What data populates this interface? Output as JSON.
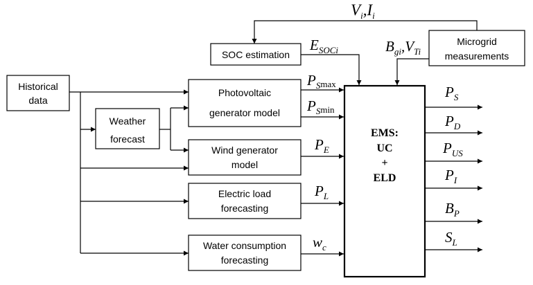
{
  "blocks": {
    "historical": [
      "Historical",
      "data"
    ],
    "weather": [
      "Weather",
      "forecast"
    ],
    "pv": [
      "Photovoltaic",
      "generator model"
    ],
    "wind": [
      "Wind generator",
      "model"
    ],
    "load": [
      "Electric load",
      "forecasting"
    ],
    "water": [
      "Water consumption",
      "forecasting"
    ],
    "soc": [
      "SOC estimation"
    ],
    "micro": [
      "Microgrid",
      "measurements"
    ],
    "ems": [
      "EMS:",
      "UC",
      "+",
      "ELD"
    ]
  },
  "signals": {
    "top": {
      "main": [
        "V",
        "I"
      ],
      "sub": [
        "i",
        "i"
      ],
      "sep": ","
    },
    "esoc": {
      "main": "E",
      "sub": "SOCi"
    },
    "bv": {
      "main": [
        "B",
        "V"
      ],
      "sub": [
        "gi",
        "Ti"
      ],
      "sep": ","
    },
    "psmax": {
      "main": "P",
      "sub": "S",
      "subup": "max"
    },
    "psmin": {
      "main": "P",
      "sub": "S",
      "subup": "min"
    },
    "pe": {
      "main": "P",
      "sub": "E"
    },
    "pl": {
      "main": "P",
      "sub": "L"
    },
    "wc": {
      "main": "w",
      "sub": "c"
    }
  },
  "outputs": [
    {
      "main": "P",
      "sub": "S"
    },
    {
      "main": "P",
      "sub": "D"
    },
    {
      "main": "P",
      "sub": "US"
    },
    {
      "main": "P",
      "sub": "I"
    },
    {
      "main": "B",
      "sub": "P"
    },
    {
      "main": "S",
      "sub": "L"
    }
  ]
}
